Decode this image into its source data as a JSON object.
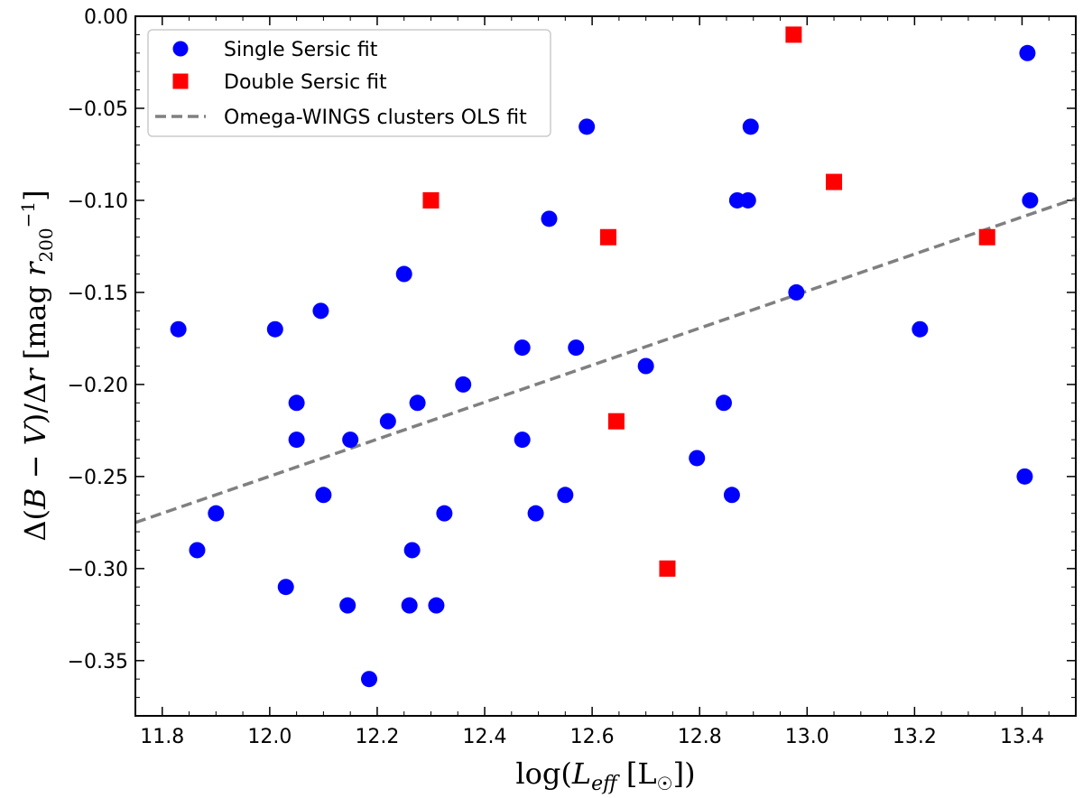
{
  "chart_data": {
    "type": "scatter",
    "xlabel": "log(L_eff [L☉])",
    "ylabel": "Δ(B − V)/Δr [mag r200^-1]",
    "xlim": [
      11.75,
      13.5
    ],
    "ylim": [
      -0.38,
      0.0
    ],
    "x_ticks": [
      11.8,
      12.0,
      12.2,
      12.4,
      12.6,
      12.8,
      13.0,
      13.2,
      13.4
    ],
    "x_tick_labels": [
      "11.8",
      "12.0",
      "12.2",
      "12.4",
      "12.6",
      "12.8",
      "13.0",
      "13.2",
      "13.4"
    ],
    "y_ticks": [
      -0.35,
      -0.3,
      -0.25,
      -0.2,
      -0.15,
      -0.1,
      -0.05,
      0.0
    ],
    "y_tick_labels": [
      "−0.35",
      "−0.30",
      "−0.25",
      "−0.20",
      "−0.15",
      "−0.10",
      "−0.05",
      "0.00"
    ],
    "series": [
      {
        "name": "Single Sersic fit",
        "marker": "circle",
        "color": "#0000ff",
        "points": [
          [
            11.83,
            -0.17
          ],
          [
            11.865,
            -0.29
          ],
          [
            11.9,
            -0.27
          ],
          [
            12.01,
            -0.17
          ],
          [
            12.03,
            -0.31
          ],
          [
            12.05,
            -0.21
          ],
          [
            12.05,
            -0.23
          ],
          [
            12.095,
            -0.16
          ],
          [
            12.1,
            -0.26
          ],
          [
            12.145,
            -0.32
          ],
          [
            12.15,
            -0.23
          ],
          [
            12.185,
            -0.36
          ],
          [
            12.22,
            -0.22
          ],
          [
            12.25,
            -0.14
          ],
          [
            12.26,
            -0.32
          ],
          [
            12.265,
            -0.29
          ],
          [
            12.275,
            -0.21
          ],
          [
            12.31,
            -0.32
          ],
          [
            12.325,
            -0.27
          ],
          [
            12.36,
            -0.2
          ],
          [
            12.47,
            -0.18
          ],
          [
            12.47,
            -0.23
          ],
          [
            12.495,
            -0.27
          ],
          [
            12.52,
            -0.11
          ],
          [
            12.55,
            -0.26
          ],
          [
            12.57,
            -0.18
          ],
          [
            12.59,
            -0.06
          ],
          [
            12.7,
            -0.19
          ],
          [
            12.795,
            -0.24
          ],
          [
            12.845,
            -0.21
          ],
          [
            12.86,
            -0.26
          ],
          [
            12.87,
            -0.1
          ],
          [
            12.89,
            -0.1
          ],
          [
            12.895,
            -0.06
          ],
          [
            12.98,
            -0.15
          ],
          [
            13.21,
            -0.17
          ],
          [
            13.405,
            -0.25
          ],
          [
            13.41,
            -0.02
          ],
          [
            13.415,
            -0.1
          ]
        ]
      },
      {
        "name": "Double Sersic fit",
        "marker": "square",
        "color": "#ff0000",
        "points": [
          [
            12.3,
            -0.1
          ],
          [
            12.63,
            -0.12
          ],
          [
            12.645,
            -0.22
          ],
          [
            12.74,
            -0.3
          ],
          [
            12.975,
            -0.01
          ],
          [
            13.05,
            -0.09
          ],
          [
            13.335,
            -0.12
          ]
        ]
      }
    ],
    "fit_line": {
      "name": "Omega-WINGS clusters OLS fit",
      "color": "#808080",
      "style": "dashed",
      "x": [
        11.75,
        13.5
      ],
      "y": [
        -0.275,
        -0.099
      ]
    },
    "legend_position": "top-left"
  }
}
